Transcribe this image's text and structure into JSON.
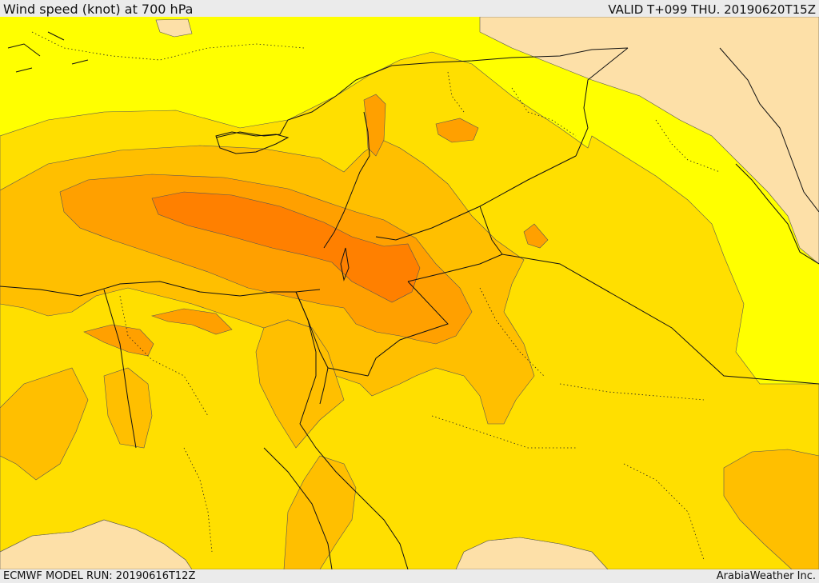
{
  "header": {
    "title": "Wind speed (knot) at 700 hPa",
    "valid": "VALID T+099 THU. 20190620T15Z"
  },
  "footer": {
    "model_run": "ECMWF MODEL RUN: 20190616T12Z",
    "credit": "ArabiaWeather Inc."
  },
  "colors": {
    "band_0_5": "#fde0a8",
    "band_5_10": "#ffff00",
    "band_10_15": "#ffdf00",
    "band_15_20": "#ffbf00",
    "band_20_25": "#ffa000",
    "band_25_30": "#ff8000",
    "contour": "#555555",
    "border": "#111111"
  }
}
